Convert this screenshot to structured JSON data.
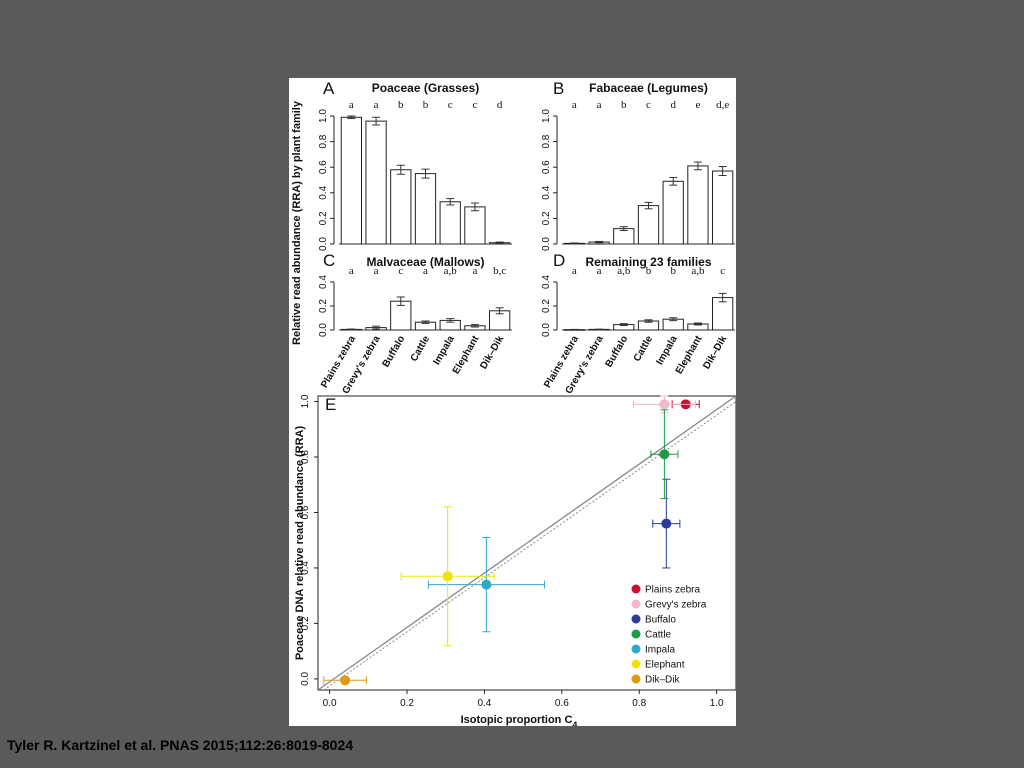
{
  "citation": "Tyler R. Kartzinel et al. PNAS 2015;112:26:8019-8024",
  "categories": [
    "Plains zebra",
    "Grevy's zebra",
    "Buffalo",
    "Cattle",
    "Impala",
    "Elephant",
    "Dik–Dik"
  ],
  "bar_ylabel": "Relative read abundance (RRA) by plant family",
  "colors": {
    "Plains zebra": "#c8102e",
    "Grevy's zebra": "#f0b8c8",
    "Buffalo": "#2e3a9a",
    "Cattle": "#1f9a48",
    "Impala": "#2ea8cc",
    "Elephant": "#f2e20a",
    "Dik–Dik": "#e09a10"
  },
  "chart_data": [
    {
      "type": "bar",
      "panel": "A",
      "title": "Poaceae (Grasses)",
      "ylim": [
        0,
        1
      ],
      "yticks": [
        "0.0",
        "0.2",
        "0.4",
        "0.6",
        "0.8",
        "1.0"
      ],
      "yticks_values": [
        0,
        0.2,
        0.4,
        0.6,
        0.8,
        1.0
      ],
      "values": [
        0.99,
        0.96,
        0.58,
        0.55,
        0.33,
        0.29,
        0.01
      ],
      "errors": [
        0.01,
        0.03,
        0.035,
        0.035,
        0.025,
        0.03,
        0.005
      ],
      "letters": [
        "a",
        "a",
        "b",
        "b",
        "c",
        "c",
        "d"
      ]
    },
    {
      "type": "bar",
      "panel": "B",
      "title": "Fabaceae (Legumes)",
      "ylim": [
        0,
        1
      ],
      "yticks": [
        "0.0",
        "0.2",
        "0.4",
        "0.6",
        "0.8",
        "1.0"
      ],
      "yticks_values": [
        0,
        0.2,
        0.4,
        0.6,
        0.8,
        1.0
      ],
      "values": [
        0.005,
        0.015,
        0.12,
        0.3,
        0.49,
        0.61,
        0.57
      ],
      "errors": [
        0.003,
        0.005,
        0.015,
        0.025,
        0.03,
        0.03,
        0.035
      ],
      "letters": [
        "a",
        "a",
        "b",
        "c",
        "d",
        "e",
        "d,e"
      ]
    },
    {
      "type": "bar",
      "panel": "C",
      "title": "Malvaceae (Mallows)",
      "ylim": [
        0,
        0.4
      ],
      "yticks": [
        "0.0",
        "0.2",
        "0.4"
      ],
      "yticks_values": [
        0,
        0.2,
        0.4
      ],
      "values": [
        0.005,
        0.02,
        0.24,
        0.065,
        0.08,
        0.035,
        0.16
      ],
      "errors": [
        0.003,
        0.012,
        0.035,
        0.01,
        0.015,
        0.01,
        0.025
      ],
      "letters": [
        "a",
        "a",
        "c",
        "a",
        "a,b",
        "a",
        "b,c"
      ]
    },
    {
      "type": "bar",
      "panel": "D",
      "title": "Remaining 23 families",
      "ylim": [
        0,
        0.4
      ],
      "yticks": [
        "0.0",
        "0.2",
        "0.4"
      ],
      "yticks_values": [
        0,
        0.2,
        0.4
      ],
      "values": [
        0.003,
        0.005,
        0.045,
        0.075,
        0.09,
        0.05,
        0.27
      ],
      "errors": [
        0.002,
        0.002,
        0.008,
        0.01,
        0.012,
        0.008,
        0.035
      ],
      "letters": [
        "a",
        "a",
        "a,b",
        "b",
        "b",
        "a,b",
        "c"
      ]
    },
    {
      "type": "scatter",
      "panel": "E",
      "xlabel": "Isotopic proportion C",
      "xlabel_sub": "4",
      "ylabel": "Poaceae DNA relative read abundance (RRA)",
      "xlim": [
        -0.03,
        1.05
      ],
      "ylim": [
        -0.04,
        1.02
      ],
      "xticks": [
        "0.0",
        "0.2",
        "0.4",
        "0.6",
        "0.8",
        "1.0"
      ],
      "xticks_values": [
        0,
        0.2,
        0.4,
        0.6,
        0.8,
        1.0
      ],
      "yticks": [
        "0.0",
        "0.2",
        "0.4",
        "0.6",
        "0.8",
        "1.0"
      ],
      "yticks_values": [
        0,
        0.2,
        0.4,
        0.6,
        0.8,
        1.0
      ],
      "points": [
        {
          "name": "Plains zebra",
          "x": 0.92,
          "y": 0.99,
          "xerr": 0.035,
          "yerr": 0.01
        },
        {
          "name": "Grevy's zebra",
          "x": 0.865,
          "y": 0.99,
          "xerr": 0.08,
          "yerr": 0.03
        },
        {
          "name": "Buffalo",
          "x": 0.87,
          "y": 0.56,
          "xerr": 0.035,
          "yerr": 0.16
        },
        {
          "name": "Cattle",
          "x": 0.865,
          "y": 0.81,
          "xerr": 0.035,
          "yerr": 0.16
        },
        {
          "name": "Impala",
          "x": 0.405,
          "y": 0.34,
          "xerr": 0.15,
          "yerr": 0.17
        },
        {
          "name": "Elephant",
          "x": 0.305,
          "y": 0.37,
          "xerr": 0.12,
          "yerr": 0.25
        },
        {
          "name": "Dik–Dik",
          "x": 0.04,
          "y": -0.005,
          "xerr": 0.055,
          "yerr": 0.004
        }
      ],
      "lines": [
        {
          "style": "solid",
          "from": [
            -0.03,
            -0.04
          ],
          "to": [
            1.05,
            1.02
          ]
        },
        {
          "style": "dotted",
          "from": [
            -0.015,
            -0.04
          ],
          "to": [
            1.05,
            1.0
          ]
        }
      ]
    }
  ]
}
